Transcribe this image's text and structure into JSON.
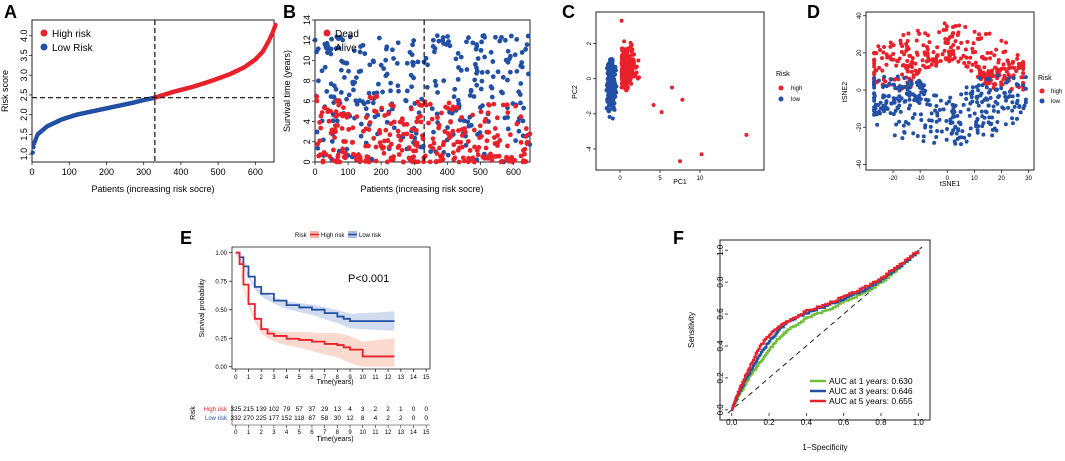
{
  "colors": {
    "high": "#e8212a",
    "low": "#2250a4",
    "green": "#6fbf3a",
    "axis": "#222222",
    "grid": "#999999"
  },
  "chart_data": [
    {
      "panel": "A",
      "type": "line",
      "title": "",
      "xlabel": "Patients (increasing risk socre)",
      "ylabel": "Risk score",
      "xlim": [
        0,
        650
      ],
      "ylim": [
        0.8,
        4.4
      ],
      "xticks": [
        "0",
        "100",
        "200",
        "300",
        "400",
        "500",
        "600"
      ],
      "yticks": [
        "1.0",
        "1.5",
        "2.0",
        "2.5",
        "3.0",
        "3.5",
        "4.0"
      ],
      "cutoff_x": 330,
      "cutoff_y": 2.43,
      "legend": [
        "High risk",
        "Low Risk"
      ],
      "curve_low": {
        "x": [
          0,
          5,
          15,
          40,
          80,
          120,
          170,
          220,
          270,
          300,
          330
        ],
        "y": [
          0.9,
          1.25,
          1.5,
          1.7,
          1.88,
          2.0,
          2.1,
          2.2,
          2.3,
          2.37,
          2.43
        ]
      },
      "curve_high": {
        "x": [
          330,
          380,
          430,
          480,
          530,
          570,
          600,
          620,
          635,
          645,
          655
        ],
        "y": [
          2.43,
          2.58,
          2.7,
          2.85,
          3.02,
          3.2,
          3.4,
          3.6,
          3.85,
          4.05,
          4.3
        ]
      }
    },
    {
      "panel": "B",
      "type": "scatter",
      "xlabel": "Patients (increasing risk socre)",
      "ylabel": "Survival time (years)",
      "xlim": [
        0,
        650
      ],
      "ylim": [
        0,
        14
      ],
      "xticks": [
        "0",
        "100",
        "200",
        "300",
        "400",
        "500",
        "600"
      ],
      "yticks": [
        "0",
        "2",
        "4",
        "6",
        "8",
        "10",
        "12",
        "14"
      ],
      "cutoff_x": 330,
      "legend": [
        "Dead",
        "Alive"
      ],
      "series": [
        {
          "name": "Dead",
          "n": 280,
          "ymax": 6
        },
        {
          "name": "Alive",
          "n": 280,
          "ymax": 13.5
        }
      ]
    },
    {
      "panel": "C",
      "type": "scatter",
      "xlabel": "PC1",
      "ylabel": "PC2",
      "xlim": [
        -3,
        18
      ],
      "ylim": [
        -5.2,
        3.8
      ],
      "xticks": [
        "0",
        "5",
        "10"
      ],
      "yticks": [
        "2",
        "0",
        "-2",
        "-4"
      ],
      "legend_title": "Risk",
      "legend": [
        "high",
        "low"
      ]
    },
    {
      "panel": "D",
      "type": "scatter",
      "xlabel": "tSNE1",
      "ylabel": "tSNE2",
      "xlim": [
        -30,
        32
      ],
      "ylim": [
        -43,
        42
      ],
      "xticks": [
        "-20",
        "-10",
        "0",
        "10",
        "20",
        "30"
      ],
      "yticks": [
        "40",
        "20",
        "0",
        "-20",
        "-40"
      ],
      "legend_title": "Risk",
      "legend": [
        "high",
        "low"
      ]
    },
    {
      "panel": "E",
      "type": "line",
      "xlabel": "Time(years)",
      "ylabel": "Survival probability",
      "xlim": [
        -0.3,
        15.3
      ],
      "ylim": [
        -0.02,
        1.05
      ],
      "xticks": [
        "0",
        "1",
        "2",
        "3",
        "4",
        "5",
        "6",
        "7",
        "8",
        "9",
        "10",
        "11",
        "12",
        "13",
        "14",
        "15"
      ],
      "yticks": [
        "0.00",
        "0.25",
        "0.50",
        "0.75",
        "1.00"
      ],
      "annotation": "P<0.001",
      "legend_title": "Risk",
      "legend": [
        "High risk",
        "Low risk"
      ],
      "high_curve": {
        "t": [
          0,
          0.3,
          0.6,
          1,
          1.5,
          2,
          2.5,
          3,
          4,
          5,
          6,
          7,
          8,
          8.5,
          9,
          10,
          12.5
        ],
        "s": [
          1.0,
          0.9,
          0.72,
          0.55,
          0.42,
          0.33,
          0.29,
          0.27,
          0.245,
          0.235,
          0.22,
          0.2,
          0.19,
          0.17,
          0.15,
          0.09,
          0.09
        ]
      },
      "low_curve": {
        "t": [
          0,
          0.3,
          0.6,
          1,
          1.5,
          2,
          3,
          4,
          5,
          6,
          7,
          8,
          8.5,
          9,
          10,
          12.5
        ],
        "s": [
          1.0,
          0.96,
          0.88,
          0.79,
          0.7,
          0.64,
          0.58,
          0.54,
          0.52,
          0.5,
          0.47,
          0.44,
          0.42,
          0.4,
          0.4,
          0.4
        ]
      },
      "risk_table": {
        "title": "Risk",
        "rows": [
          {
            "label": "High risk",
            "values": [
              "325",
              "215",
              "139",
              "102",
              "79",
              "57",
              "37",
              "29",
              "13",
              "4",
              "3",
              "2",
              "2",
              "1",
              "0",
              "0"
            ]
          },
          {
            "label": "Low risk",
            "values": [
              "332",
              "270",
              "225",
              "177",
              "152",
              "118",
              "87",
              "58",
              "30",
              "12",
              "8",
              "4",
              "2",
              "2",
              "0",
              "0"
            ]
          }
        ],
        "xlabel": "Time(years)"
      }
    },
    {
      "panel": "F",
      "type": "line",
      "xlabel": "1−Specificity",
      "ylabel": "Sensitivity",
      "xlim": [
        -0.02,
        1.02
      ],
      "ylim": [
        -0.02,
        1.02
      ],
      "xticks": [
        "0.0",
        "0.2",
        "0.4",
        "0.6",
        "0.8",
        "1.0"
      ],
      "yticks": [
        "0.0",
        "0.2",
        "0.4",
        "0.6",
        "0.8",
        "1.0"
      ],
      "series": [
        {
          "name": "AUC at 1 years: 0.630",
          "x": [
            0,
            0.02,
            0.05,
            0.1,
            0.15,
            0.2,
            0.25,
            0.3,
            0.4,
            0.5,
            0.6,
            0.7,
            0.8,
            0.9,
            1.0
          ],
          "y": [
            0,
            0.05,
            0.12,
            0.22,
            0.3,
            0.38,
            0.45,
            0.5,
            0.58,
            0.62,
            0.68,
            0.73,
            0.8,
            0.9,
            1.0
          ]
        },
        {
          "name": "AUC at 3 years: 0.646",
          "x": [
            0,
            0.02,
            0.05,
            0.1,
            0.15,
            0.2,
            0.25,
            0.3,
            0.4,
            0.5,
            0.6,
            0.7,
            0.8,
            0.9,
            1.0
          ],
          "y": [
            0,
            0.06,
            0.14,
            0.25,
            0.35,
            0.43,
            0.5,
            0.55,
            0.61,
            0.65,
            0.7,
            0.75,
            0.82,
            0.9,
            1.0
          ]
        },
        {
          "name": "AUC at 5 years: 0.655",
          "x": [
            0,
            0.02,
            0.05,
            0.1,
            0.15,
            0.2,
            0.25,
            0.3,
            0.4,
            0.5,
            0.6,
            0.7,
            0.8,
            0.9,
            1.0
          ],
          "y": [
            0,
            0.07,
            0.16,
            0.28,
            0.4,
            0.47,
            0.52,
            0.56,
            0.62,
            0.66,
            0.71,
            0.76,
            0.83,
            0.91,
            1.0
          ]
        }
      ]
    }
  ],
  "panel_labels": [
    "A",
    "B",
    "C",
    "D",
    "E",
    "F"
  ]
}
